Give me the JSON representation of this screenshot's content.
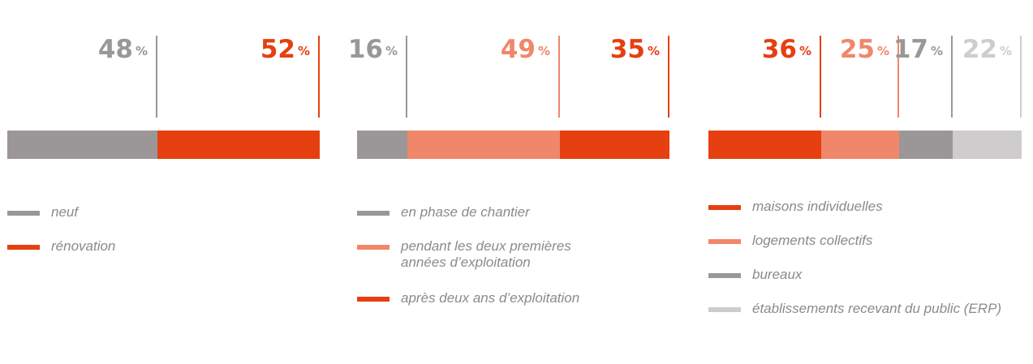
{
  "colors": {
    "gray": "#9b9799",
    "red": "#e63f10",
    "salmon": "#f0876a",
    "light_gray": "#cfcccd",
    "text_gray": "#8c898b"
  },
  "chart_data": [
    {
      "type": "stacked-bar",
      "series": [
        {
          "name": "neuf",
          "value": 48,
          "label": "48",
          "color": "#9b9799"
        },
        {
          "name": "rénovation",
          "value": 52,
          "label": "52",
          "color": "#e63f10"
        }
      ],
      "unit": "%"
    },
    {
      "type": "stacked-bar",
      "series": [
        {
          "name": "en phase de chantier",
          "value": 16,
          "label": "16",
          "color": "#9b9799"
        },
        {
          "name": "pendant les deux premières années d’exploitation",
          "value": 49,
          "label": "49",
          "color": "#f0876a"
        },
        {
          "name": "après deux ans d’exploitation",
          "value": 35,
          "label": "35",
          "color": "#e63f10"
        }
      ],
      "unit": "%"
    },
    {
      "type": "stacked-bar",
      "series": [
        {
          "name": "maisons individuelles",
          "value": 36,
          "label": "36",
          "color": "#e63f10"
        },
        {
          "name": "logements collectifs",
          "value": 25,
          "label": "25",
          "color": "#f0876a"
        },
        {
          "name": "bureaux",
          "value": 17,
          "label": "17",
          "color": "#9b9799"
        },
        {
          "name": "établissements recevant du public (ERP)",
          "value": 22,
          "label": "22",
          "color": "#cfcccd"
        }
      ],
      "unit": "%"
    }
  ]
}
